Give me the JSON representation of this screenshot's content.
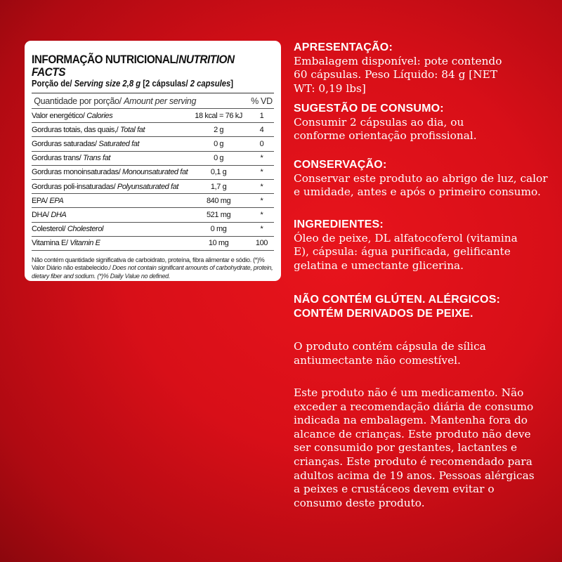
{
  "nutrition": {
    "title_pt": "INFORMAÇÃO NUTRICIONAL/",
    "title_en": "NUTRITION FACTS",
    "serving_pt": "Porção de/ ",
    "serving_en": "Serving size 2,8 g",
    "serving_caps_pt": " [2 cápsulas/ ",
    "serving_caps_en": "2 capsules",
    "serving_end": "]",
    "header": {
      "pt": "Quantidade por porção/ ",
      "en": "Amount per serving",
      "vd": "% VD"
    },
    "rows": [
      {
        "pt": "Valor energético/ ",
        "en": "Calories",
        "value": "18 kcal = 76 kJ",
        "vd": "1"
      },
      {
        "pt": "Gorduras totais, das quais,/ ",
        "en": "Total fat",
        "value": "2 g",
        "vd": "4"
      },
      {
        "pt": "Gorduras saturadas/ ",
        "en": "Saturated fat",
        "value": "0 g",
        "vd": "0"
      },
      {
        "pt": "Gorduras trans/ ",
        "en": "Trans fat",
        "value": "0 g",
        "vd": "*"
      },
      {
        "pt": "Gorduras monoinsaturadas/ ",
        "en": "Monounsaturated fat",
        "value": "0,1 g",
        "vd": "*"
      },
      {
        "pt": "Gorduras poli-insaturadas/ ",
        "en": "Polyunsaturated fat",
        "value": "1,7 g",
        "vd": "*"
      },
      {
        "pt": "EPA/ ",
        "en": "EPA",
        "value": "840 mg",
        "vd": "*"
      },
      {
        "pt": "DHA/ ",
        "en": "DHA",
        "value": "521 mg",
        "vd": "*"
      },
      {
        "pt": "Colesterol/ ",
        "en": "Cholesterol",
        "value": "0 mg",
        "vd": "*"
      },
      {
        "pt": "Vitamina E/ ",
        "en": "Vitamin E",
        "value": "10 mg",
        "vd": "100"
      }
    ],
    "footnote_pt": "Não contém quantidade significativa de carboidrato, proteína, fibra alimentar e sódio. (*)% Valor Diário não estabelecido./ ",
    "footnote_en": "Does not contain significant amounts of carbohydrate, protein, dietary fiber and sodium. (*)% Daily Value no defined."
  },
  "info": {
    "apresentacao_h": "APRESENTAÇÃO:",
    "apresentacao": "Embalagem disponível: pote contendo 60 cápsulas. Peso Líquido:  84 g [NET WT: 0,19 lbs]",
    "sugestao_h": "SUGESTÃO DE CONSUMO:",
    "sugestao": "Consumir 2 cápsulas ao dia, ou conforme orientação profissional.",
    "conservacao_h": "CONSERVAÇÃO:",
    "conservacao": "Conservar este produto ao abrigo de luz, calor e umidade, antes e após o primeiro consumo.",
    "ingredientes_h": "INGREDIENTES:",
    "ingredientes": "Óleo de peixe, DL alfatocoferol (vitamina E), cápsula: água purificada, gelificante gelatina e umectante glicerina.",
    "alergicos_h": "NÃO CONTÉM GLÚTEN. ALÉRGICOS: CONTÉM DERIVADOS DE PEIXE.",
    "silica": "O produto contém cápsula de sílica antiumectante não comestível.",
    "aviso": "Este produto não é um medicamento. Não exceder a recomendação diária de consumo indicada na embalagem. Mantenha fora do alcance de crianças. Este produto não deve ser consumido por gestantes, lactantes e crianças. Este produto é recomendado para adultos acima de 19 anos. Pessoas alérgicas a peixes e crustáceos devem evitar o consumo deste produto."
  }
}
